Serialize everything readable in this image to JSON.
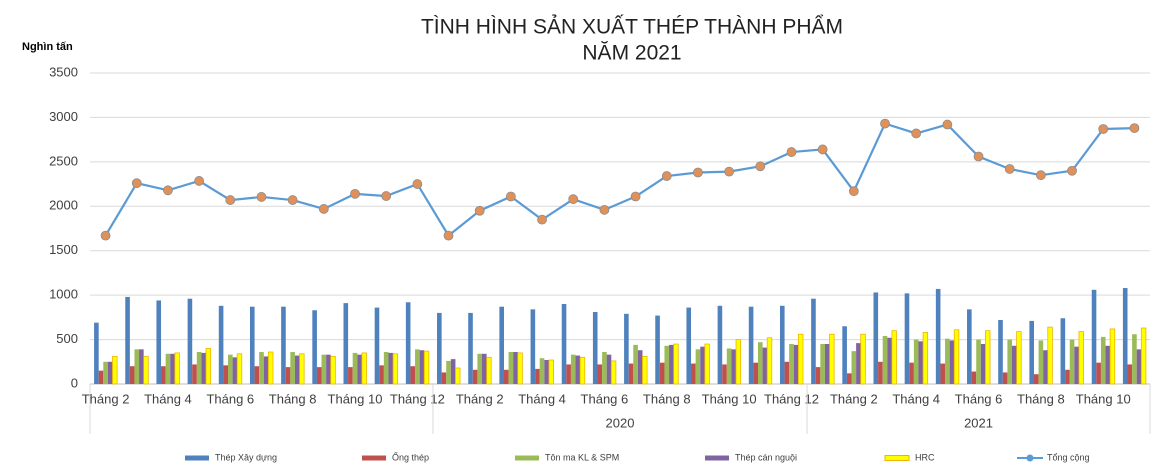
{
  "chart_data": {
    "type": "bar_line",
    "title": [
      "TÌNH HÌNH SẢN XUẤT THÉP THÀNH PHẨM",
      "NĂM 2021"
    ],
    "y_axis_label": "Nghìn tấn",
    "categories": [
      "Tháng 2",
      null,
      "Tháng 4",
      null,
      "Tháng 6",
      null,
      "Tháng 8",
      null,
      "Tháng 10",
      null,
      "Tháng 12",
      null,
      "Tháng 2",
      null,
      "Tháng 4",
      null,
      "Tháng 6",
      null,
      "Tháng 8",
      null,
      "Tháng 10",
      null,
      "Tháng 12",
      null,
      "Tháng 2",
      null,
      "Tháng 4",
      null,
      "Tháng 6",
      null,
      "Tháng 8",
      null,
      "Tháng 10",
      null
    ],
    "groups": [
      {
        "label": null,
        "size": 11
      },
      {
        "label": "2020",
        "size": 12
      },
      {
        "label": "2021",
        "size": 11
      }
    ],
    "ylim": [
      0,
      3500
    ],
    "yticks": [
      0,
      500,
      1000,
      1500,
      2000,
      2500,
      3000,
      3500
    ],
    "grid": true,
    "legend": "bottom",
    "series": [
      {
        "name": "Thép Xây dựng",
        "type": "bar",
        "color": "#4f81bd",
        "values": [
          690,
          980,
          940,
          960,
          880,
          870,
          870,
          830,
          910,
          860,
          920,
          800,
          800,
          870,
          840,
          900,
          810,
          790,
          770,
          860,
          880,
          870,
          880,
          960,
          650,
          1030,
          1020,
          1070,
          840,
          720,
          710,
          740,
          1060,
          1080
        ]
      },
      {
        "name": "Ống thép",
        "type": "bar",
        "color": "#c0504d",
        "values": [
          150,
          200,
          200,
          220,
          210,
          200,
          190,
          190,
          190,
          210,
          200,
          130,
          160,
          160,
          170,
          220,
          220,
          230,
          240,
          230,
          220,
          240,
          250,
          190,
          120,
          250,
          240,
          230,
          140,
          130,
          110,
          160,
          240,
          220
        ]
      },
      {
        "name": "Tôn ma KL & SPM",
        "type": "bar",
        "color": "#9bbb59",
        "values": [
          250,
          390,
          340,
          360,
          330,
          360,
          360,
          330,
          350,
          360,
          390,
          260,
          340,
          360,
          290,
          330,
          360,
          440,
          430,
          390,
          400,
          470,
          450,
          450,
          370,
          540,
          500,
          510,
          500,
          500,
          490,
          500,
          530,
          560
        ]
      },
      {
        "name": "Thép cán nguội",
        "type": "bar",
        "color": "#8064a2",
        "values": [
          250,
          390,
          340,
          350,
          300,
          310,
          320,
          330,
          330,
          350,
          380,
          280,
          340,
          360,
          270,
          320,
          330,
          380,
          440,
          420,
          390,
          410,
          440,
          450,
          460,
          520,
          480,
          490,
          450,
          430,
          380,
          420,
          430,
          390
        ]
      },
      {
        "name": "HRC",
        "type": "bar",
        "color": "#ffff00",
        "values": [
          310,
          310,
          350,
          400,
          340,
          360,
          340,
          310,
          350,
          340,
          370,
          180,
          300,
          350,
          270,
          300,
          260,
          310,
          450,
          450,
          500,
          520,
          560,
          560,
          560,
          600,
          580,
          610,
          600,
          590,
          640,
          590,
          620,
          630
        ]
      },
      {
        "name": "Tổng cộng",
        "type": "line",
        "color": "#5b9bd5",
        "values": [
          1670,
          2260,
          2180,
          2285,
          2070,
          2105,
          2070,
          1970,
          2140,
          2115,
          2250,
          1670,
          1950,
          2110,
          1850,
          2080,
          1960,
          2110,
          2340,
          2380,
          2390,
          2450,
          2610,
          2640,
          2170,
          2930,
          2820,
          2920,
          2560,
          2420,
          2350,
          2400,
          2870,
          2880
        ]
      }
    ]
  }
}
